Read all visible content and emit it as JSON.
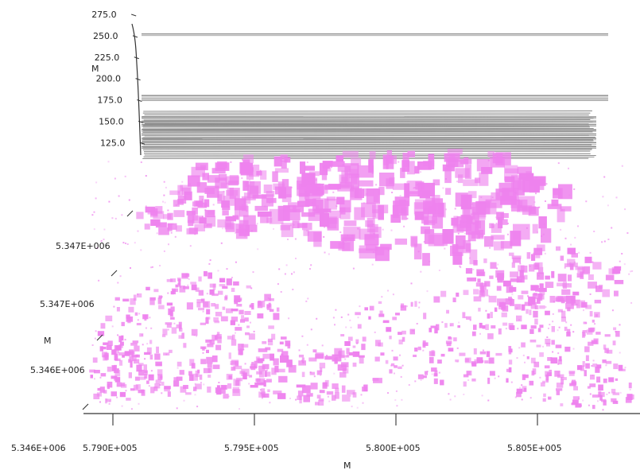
{
  "chart_data": {
    "type": "3d-point-cloud",
    "title": "",
    "colors": {
      "points": "#ee82ee",
      "layers": "#8f8f8f",
      "axis": "#333333"
    },
    "z_axis": {
      "label": "M",
      "ticks": [
        {
          "value": 275.0,
          "label": "275.0"
        },
        {
          "value": 250.0,
          "label": "250.0"
        },
        {
          "value": 225.0,
          "label": "225.0"
        },
        {
          "value": 200.0,
          "label": "200.0"
        },
        {
          "value": 175.0,
          "label": "175.0"
        },
        {
          "value": 150.0,
          "label": "150.0"
        },
        {
          "value": 125.0,
          "label": "125.0"
        }
      ],
      "range": [
        115,
        275
      ]
    },
    "x_axis": {
      "label": "M",
      "ticks": [
        {
          "value": 579000,
          "label": "5.790E+005"
        },
        {
          "value": 579500,
          "label": "5.795E+005"
        },
        {
          "value": 580000,
          "label": "5.800E+005"
        },
        {
          "value": 580500,
          "label": "5.805E+005"
        }
      ]
    },
    "y_axis": {
      "label": "M",
      "ticks": [
        {
          "label": "5.347E+006"
        },
        {
          "label": "5.347E+006"
        },
        {
          "label": "5.346E+006"
        },
        {
          "label": "5.346E+006"
        }
      ]
    },
    "layer_elevations": [
      252,
      180,
      176,
      155,
      150,
      146,
      140,
      135,
      130,
      125,
      120
    ]
  }
}
